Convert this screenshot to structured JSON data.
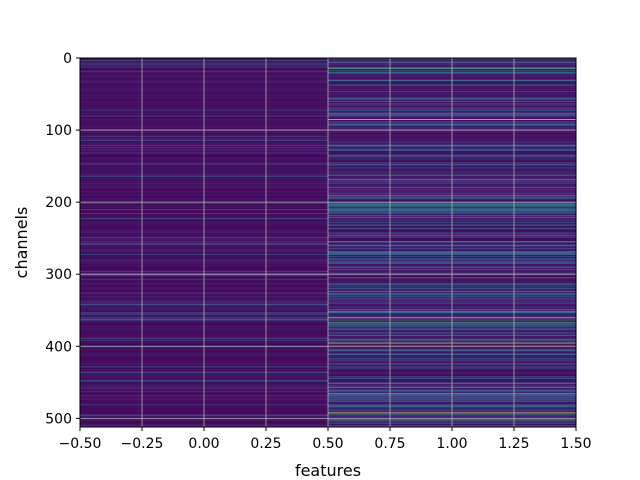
{
  "chart_data": {
    "type": "heatmap",
    "title": "",
    "xlabel": "features",
    "ylabel": "channels",
    "xlim": [
      -0.5,
      1.5
    ],
    "ylim": [
      512,
      0
    ],
    "rows": 512,
    "columns": 2,
    "colormap": "viridis",
    "value_range": [
      0,
      1
    ],
    "grid": true,
    "x_ticks": [
      "−0.50",
      "−0.25",
      "0.00",
      "0.25",
      "0.50",
      "0.75",
      "1.00",
      "1.25",
      "1.50"
    ],
    "x_tick_values": [
      -0.5,
      -0.25,
      0.0,
      0.25,
      0.5,
      0.75,
      1.0,
      1.25,
      1.5
    ],
    "y_ticks": [
      "0",
      "100",
      "200",
      "300",
      "400",
      "500"
    ],
    "y_tick_values": [
      0,
      100,
      200,
      300,
      400,
      500
    ],
    "highlighted_rows": [
      {
        "column": 0,
        "row": 362,
        "value": 0.55
      },
      {
        "column": 0,
        "row": 210,
        "value": 0.35
      },
      {
        "column": 0,
        "row": 272,
        "value": 0.3
      },
      {
        "column": 0,
        "row": 80,
        "value": 0.3
      },
      {
        "column": 1,
        "row": 14,
        "value": 0.7
      },
      {
        "column": 1,
        "row": 85,
        "value": 0.95
      },
      {
        "column": 1,
        "row": 162,
        "value": 0.65
      },
      {
        "column": 1,
        "row": 168,
        "value": 0.6
      },
      {
        "column": 1,
        "row": 210,
        "value": 0.55
      },
      {
        "column": 1,
        "row": 360,
        "value": 0.8
      },
      {
        "column": 1,
        "row": 367,
        "value": 0.75
      },
      {
        "column": 1,
        "row": 395,
        "value": 0.9
      },
      {
        "column": 1,
        "row": 465,
        "value": 0.65
      },
      {
        "column": 1,
        "row": 492,
        "value": 0.95
      }
    ]
  }
}
